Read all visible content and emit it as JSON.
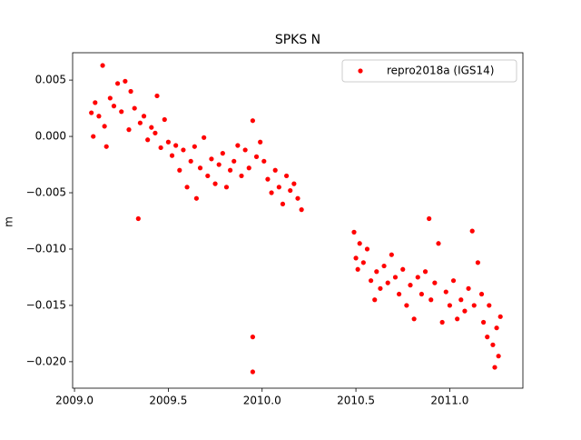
{
  "chart_data": {
    "type": "scatter",
    "title": "SPKS N",
    "y_label": "m",
    "legend": "upper right",
    "xlim": [
      2008.99,
      2011.39
    ],
    "ylim": [
      -0.02235,
      0.00743
    ],
    "xticks": [
      {
        "value": 2009,
        "label": "2009.0"
      },
      2009.5,
      {
        "value": 2010,
        "label": "2010.0"
      },
      2010.5,
      {
        "value": 2011,
        "label": "2011.0"
      }
    ],
    "yticks": [
      0.005,
      {
        "value": 0,
        "label": "0.000"
      },
      {
        "value": -0.005,
        "label": "−0.005"
      },
      {
        "value": -0.01,
        "label": "−0.010"
      },
      {
        "value": -0.015,
        "label": "−0.015"
      },
      {
        "value": -0.02,
        "label": "−0.020"
      }
    ],
    "x": [
      2009.09,
      2009.1,
      2009.11,
      2009.13,
      2009.15,
      2009.16,
      2009.17,
      2009.19,
      2009.21,
      2009.23,
      2009.25,
      2009.27,
      2009.29,
      2009.3,
      2009.32,
      2009.34,
      2009.35,
      2009.37,
      2009.39,
      2009.41,
      2009.43,
      2009.44,
      2009.46,
      2009.48,
      2009.5,
      2009.52,
      2009.54,
      2009.56,
      2009.58,
      2009.6,
      2009.62,
      2009.64,
      2009.65,
      2009.67,
      2009.69,
      2009.71,
      2009.73,
      2009.75,
      2009.77,
      2009.79,
      2009.81,
      2009.83,
      2009.85,
      2009.87,
      2009.89,
      2009.91,
      2009.93,
      2009.95,
      2009.95,
      2009.95,
      2009.97,
      2009.99,
      2010.01,
      2010.03,
      2010.05,
      2010.07,
      2010.09,
      2010.11,
      2010.13,
      2010.15,
      2010.17,
      2010.19,
      2010.21,
      2010.49,
      2010.5,
      2010.51,
      2010.52,
      2010.54,
      2010.56,
      2010.58,
      2010.6,
      2010.61,
      2010.63,
      2010.65,
      2010.67,
      2010.69,
      2010.71,
      2010.73,
      2010.75,
      2010.77,
      2010.79,
      2010.81,
      2010.83,
      2010.85,
      2010.87,
      2010.89,
      2010.9,
      2010.92,
      2010.94,
      2010.96,
      2010.98,
      2011.0,
      2011.02,
      2011.04,
      2011.06,
      2011.08,
      2011.1,
      2011.12,
      2011.13,
      2011.15,
      2011.17,
      2011.18,
      2011.2,
      2011.21,
      2011.23,
      2011.24,
      2011.25,
      2011.26,
      2011.27
    ],
    "series": [
      {
        "name": "repro2018a (IGS14)",
        "color": "#ff0000",
        "values": [
          0.0021,
          0.0,
          0.003,
          0.0018,
          0.0063,
          0.0009,
          -0.0009,
          0.0034,
          0.0027,
          0.0047,
          0.0022,
          0.0049,
          0.0006,
          0.004,
          0.0025,
          -0.0073,
          0.0012,
          0.0018,
          -0.0003,
          0.0008,
          0.0003,
          0.0036,
          -0.001,
          0.0015,
          -0.0005,
          -0.0017,
          -0.0008,
          -0.003,
          -0.0012,
          -0.0045,
          -0.0022,
          -0.0009,
          -0.0055,
          -0.0028,
          -0.0001,
          -0.0035,
          -0.002,
          -0.0042,
          -0.0025,
          -0.0015,
          -0.0045,
          -0.003,
          -0.0022,
          -0.0008,
          -0.0035,
          -0.0012,
          -0.0028,
          0.0014,
          -0.0178,
          -0.0209,
          -0.0018,
          -0.0005,
          -0.0022,
          -0.0038,
          -0.005,
          -0.003,
          -0.0045,
          -0.006,
          -0.0035,
          -0.0048,
          -0.0042,
          -0.0055,
          -0.0065,
          -0.0085,
          -0.0108,
          -0.0118,
          -0.0095,
          -0.0112,
          -0.01,
          -0.0128,
          -0.0145,
          -0.012,
          -0.0135,
          -0.0115,
          -0.013,
          -0.0105,
          -0.0125,
          -0.014,
          -0.0118,
          -0.015,
          -0.0132,
          -0.0162,
          -0.0125,
          -0.014,
          -0.012,
          -0.0073,
          -0.0145,
          -0.013,
          -0.0095,
          -0.0165,
          -0.0138,
          -0.015,
          -0.0128,
          -0.0162,
          -0.0145,
          -0.0155,
          -0.0135,
          -0.0084,
          -0.015,
          -0.0112,
          -0.014,
          -0.0165,
          -0.0178,
          -0.015,
          -0.0185,
          -0.0205,
          -0.017,
          -0.0195,
          -0.016
        ]
      }
    ]
  }
}
